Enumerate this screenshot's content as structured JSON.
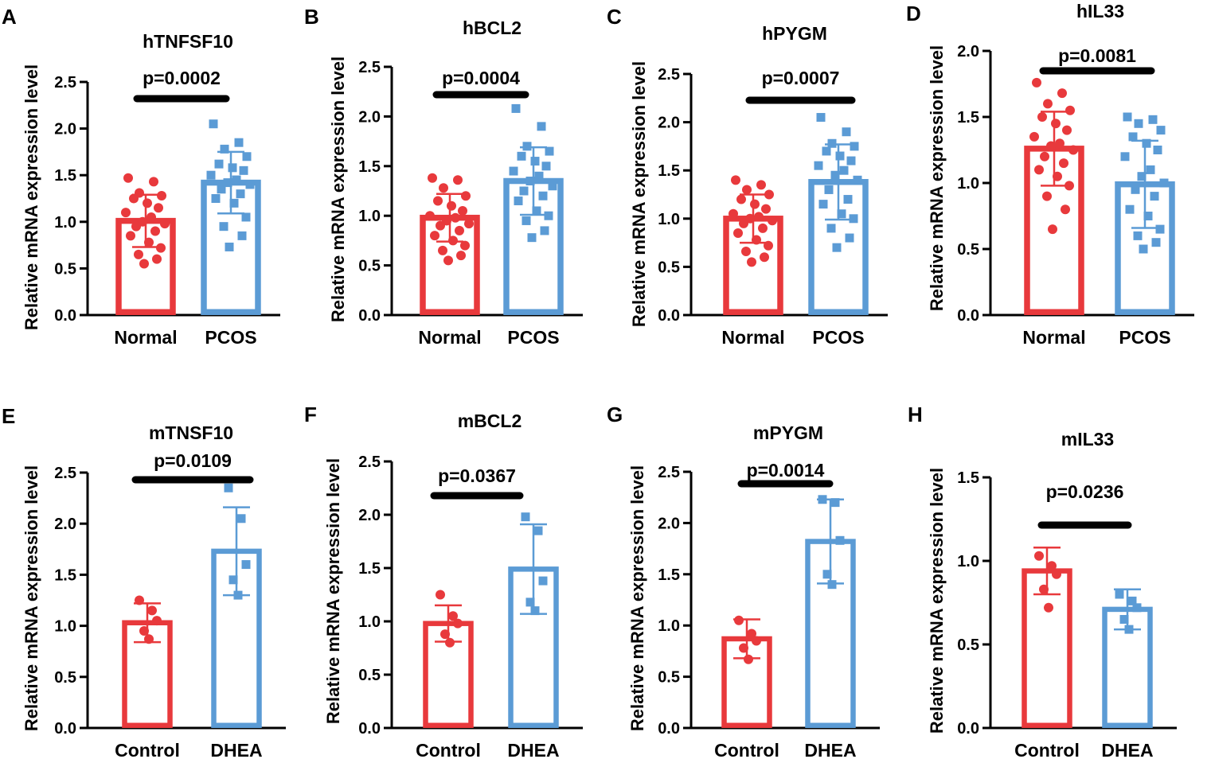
{
  "figure": {
    "colors": {
      "group1": "#e8393c",
      "group2": "#5b9bd5",
      "axis": "#000000"
    },
    "y_axis_label": "Relative mRNA expression level"
  },
  "chart_data": [
    {
      "type": "bar",
      "panel": "A",
      "title": "hTNFSF10",
      "p_value": "p=0.0002",
      "ylabel": "Relative mRNA expression level",
      "ylim": [
        0,
        2.5
      ],
      "yticks": [
        "0.0",
        "0.5",
        "1.0",
        "1.5",
        "2.0",
        "2.5"
      ],
      "categories": [
        "Normal",
        "PCOS"
      ],
      "values": [
        1.01,
        1.42
      ],
      "errors": [
        0.28,
        0.33
      ],
      "points": [
        [
          1.47,
          1.43,
          1.31,
          1.28,
          1.25,
          1.2,
          1.15,
          1.1,
          1.05,
          1.0,
          0.98,
          0.95,
          0.9,
          0.85,
          0.78,
          0.72,
          0.65,
          0.6,
          0.55
        ],
        [
          2.05,
          1.85,
          1.78,
          1.7,
          1.62,
          1.58,
          1.55,
          1.5,
          1.45,
          1.42,
          1.4,
          1.35,
          1.3,
          1.25,
          1.2,
          1.05,
          0.95,
          0.85,
          0.73
        ]
      ]
    },
    {
      "type": "bar",
      "panel": "B",
      "title": "hBCL2",
      "p_value": "p=0.0004",
      "ylabel": "Relative mRNA expression level",
      "ylim": [
        0,
        2.5
      ],
      "yticks": [
        "0.0",
        "0.5",
        "1.0",
        "1.5",
        "2.0",
        "2.5"
      ],
      "categories": [
        "Normal",
        "PCOS"
      ],
      "values": [
        0.98,
        1.35
      ],
      "errors": [
        0.24,
        0.34
      ],
      "points": [
        [
          1.38,
          1.36,
          1.28,
          1.2,
          1.15,
          1.1,
          1.05,
          1.0,
          0.98,
          0.95,
          0.92,
          0.9,
          0.85,
          0.8,
          0.75,
          0.7,
          0.65,
          0.6,
          0.55
        ],
        [
          2.08,
          1.9,
          1.7,
          1.65,
          1.6,
          1.55,
          1.5,
          1.45,
          1.4,
          1.35,
          1.3,
          1.25,
          1.2,
          1.15,
          1.05,
          1.0,
          0.95,
          0.85,
          0.78
        ]
      ]
    },
    {
      "type": "bar",
      "panel": "C",
      "title": "hPYGM",
      "p_value": "p=0.0007",
      "ylabel": "Relative mRNA expression level",
      "ylim": [
        0,
        2.5
      ],
      "yticks": [
        "0.0",
        "0.5",
        "1.0",
        "1.5",
        "2.0",
        "2.5"
      ],
      "categories": [
        "Normal",
        "PCOS"
      ],
      "values": [
        1.0,
        1.38
      ],
      "errors": [
        0.25,
        0.39
      ],
      "points": [
        [
          1.4,
          1.35,
          1.3,
          1.25,
          1.2,
          1.15,
          1.1,
          1.05,
          1.02,
          1.0,
          0.98,
          0.95,
          0.9,
          0.85,
          0.78,
          0.72,
          0.66,
          0.6,
          0.55
        ],
        [
          2.05,
          1.9,
          1.78,
          1.75,
          1.7,
          1.65,
          1.6,
          1.55,
          1.5,
          1.45,
          1.4,
          1.3,
          1.2,
          1.15,
          1.05,
          1.0,
          0.9,
          0.8,
          0.7
        ]
      ]
    },
    {
      "type": "bar",
      "panel": "D",
      "title": "hIL33",
      "p_value": "p=0.0081",
      "ylabel": "Relative mRNA expression level",
      "ylim": [
        0,
        2.0
      ],
      "yticks": [
        "0.0",
        "0.5",
        "1.0",
        "1.5",
        "2.0"
      ],
      "categories": [
        "Normal",
        "PCOS"
      ],
      "values": [
        1.26,
        0.99
      ],
      "errors": [
        0.28,
        0.33
      ],
      "points": [
        [
          1.76,
          1.68,
          1.6,
          1.55,
          1.5,
          1.45,
          1.4,
          1.35,
          1.3,
          1.28,
          1.25,
          1.2,
          1.15,
          1.1,
          1.05,
          0.98,
          0.9,
          0.8,
          0.65
        ],
        [
          1.5,
          1.48,
          1.45,
          1.4,
          1.35,
          1.3,
          1.25,
          1.2,
          1.1,
          1.05,
          1.0,
          0.95,
          0.9,
          0.8,
          0.75,
          0.65,
          0.6,
          0.55,
          0.5
        ]
      ]
    },
    {
      "type": "bar",
      "panel": "E",
      "title": "mTNSF10",
      "p_value": "p=0.0109",
      "ylabel": "Relative mRNA expression level",
      "ylim": [
        0,
        2.5
      ],
      "yticks": [
        "0.0",
        "0.5",
        "1.0",
        "1.5",
        "2.0",
        "2.5"
      ],
      "categories": [
        "Control",
        "DHEA"
      ],
      "values": [
        1.03,
        1.73
      ],
      "errors": [
        0.19,
        0.43
      ],
      "points": [
        [
          1.25,
          1.15,
          1.05,
          0.95,
          0.87
        ],
        [
          2.35,
          2.05,
          1.6,
          1.45,
          1.3
        ]
      ]
    },
    {
      "type": "bar",
      "panel": "F",
      "title": "mBCL2",
      "p_value": "p=0.0367",
      "ylabel": "Relative mRNA expression level",
      "ylim": [
        0,
        2.5
      ],
      "yticks": [
        "0.0",
        "0.5",
        "1.0",
        "1.5",
        "2.0",
        "2.5"
      ],
      "categories": [
        "Control",
        "DHEA"
      ],
      "values": [
        0.98,
        1.49
      ],
      "errors": [
        0.17,
        0.42
      ],
      "points": [
        [
          1.25,
          1.05,
          0.98,
          0.88,
          0.8
        ],
        [
          1.98,
          1.85,
          1.38,
          1.18,
          1.1
        ]
      ]
    },
    {
      "type": "bar",
      "panel": "G",
      "title": "mPYGM",
      "p_value": "p=0.0014",
      "ylabel": "Relative mRNA expression level",
      "ylim": [
        0,
        2.5
      ],
      "yticks": [
        "0.0",
        "0.5",
        "1.0",
        "1.5",
        "2.0",
        "2.5"
      ],
      "categories": [
        "Control",
        "DHEA"
      ],
      "values": [
        0.87,
        1.82
      ],
      "errors": [
        0.19,
        0.41
      ],
      "points": [
        [
          1.05,
          0.92,
          0.85,
          0.78,
          0.67
        ],
        [
          2.23,
          2.2,
          1.83,
          1.5,
          1.4
        ]
      ]
    },
    {
      "type": "bar",
      "panel": "H",
      "title": "mIL33",
      "p_value": "p=0.0236",
      "ylabel": "Relative mRNA expression level",
      "ylim": [
        0,
        1.5
      ],
      "yticks": [
        "0.0",
        "0.5",
        "1.0",
        "1.5"
      ],
      "categories": [
        "Control",
        "DHEA"
      ],
      "values": [
        0.94,
        0.71
      ],
      "errors": [
        0.14,
        0.12
      ],
      "points": [
        [
          1.03,
          0.97,
          0.92,
          0.83,
          0.72
        ],
        [
          0.8,
          0.76,
          0.72,
          0.65,
          0.59
        ]
      ]
    }
  ]
}
